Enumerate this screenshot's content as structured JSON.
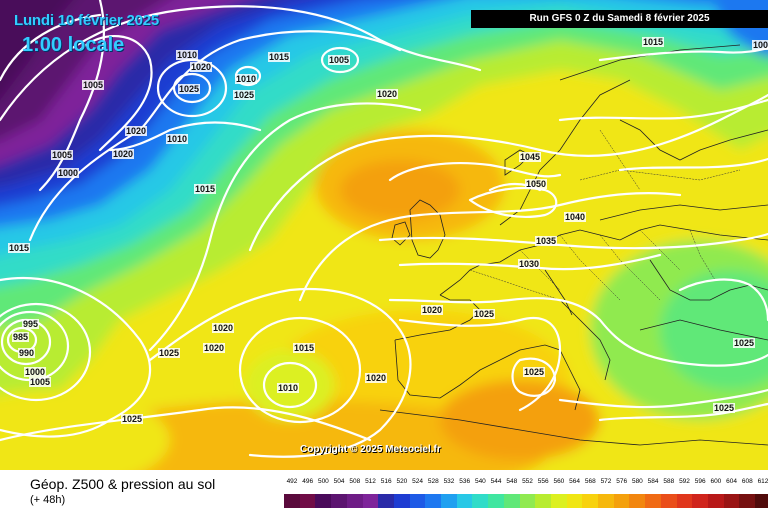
{
  "header": {
    "date": "Lundi 10 février 2025",
    "time": "1:00 locale",
    "run": "Run GFS 0 Z du Samedi 8 février 2025"
  },
  "copyright": "Copyright © 2025 Meteociel.fr",
  "legend": {
    "title": "Géop. Z500 & pression au sol",
    "subtitle": "(+ 48h)",
    "values": [
      "492",
      "496",
      "500",
      "504",
      "508",
      "512",
      "516",
      "520",
      "524",
      "528",
      "532",
      "536",
      "540",
      "544",
      "548",
      "552",
      "556",
      "560",
      "564",
      "568",
      "572",
      "576",
      "580",
      "584",
      "588",
      "592",
      "596",
      "600",
      "604",
      "608",
      "612"
    ],
    "colors": [
      "#5a0a3c",
      "#700c46",
      "#4a0a5a",
      "#5c1470",
      "#6e1c86",
      "#7e249a",
      "#2a2aa8",
      "#1e3cd2",
      "#1e5ae6",
      "#1e78f0",
      "#20a0f0",
      "#28c8e6",
      "#30dcc8",
      "#40e6a0",
      "#60e878",
      "#90ea50",
      "#b8ec30",
      "#dcf020",
      "#f0e614",
      "#f8d20e",
      "#f6b80c",
      "#f4a00c",
      "#f2860e",
      "#f06a14",
      "#ea4e1a",
      "#e0361c",
      "#d0241c",
      "#b81818",
      "#9a1414",
      "#761010",
      "#500a0a"
    ]
  },
  "pressure_labels": [
    "1005",
    "1010",
    "1015",
    "1020",
    "1025",
    "1010",
    "1005",
    "1020",
    "1015",
    "1020",
    "1025",
    "1015",
    "1005",
    "1015",
    "1005",
    "1000",
    "1020",
    "1010",
    "1020",
    "1025",
    "1025",
    "1020",
    "1015",
    "1045",
    "1050",
    "1040",
    "1035",
    "1030",
    "1020",
    "1025",
    "1025",
    "1025",
    "1020",
    "1010",
    "1025",
    "995",
    "985",
    "990",
    "1000",
    "1005"
  ],
  "map_colors": {
    "purple": "#5c1e70",
    "deep_blue": "#1e3cd2",
    "blue": "#1e78f0",
    "cyan": "#28c8e6",
    "teal": "#30dcc8",
    "green": "#60e878",
    "lime": "#b8ec30",
    "yellow": "#f0e614",
    "orange": "#f4a00c"
  }
}
